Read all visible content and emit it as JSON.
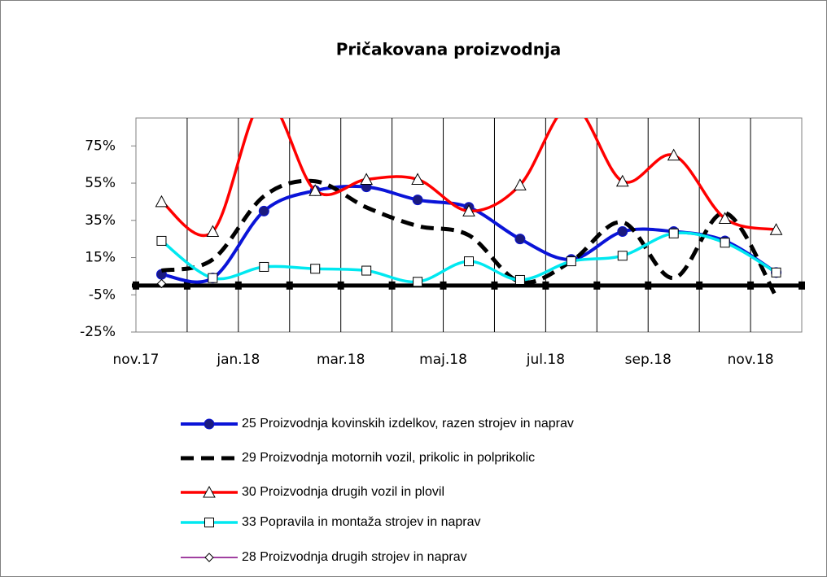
{
  "chart_data": {
    "type": "line",
    "title": "Pričakovana proizvodnja",
    "categories": [
      "nov.17",
      null,
      "jan.18",
      null,
      "mar.18",
      null,
      "maj.18",
      null,
      "jul.18",
      null,
      "sep.18",
      null,
      "nov.18"
    ],
    "ylim": [
      -25,
      90
    ],
    "yticks": [
      {
        "value": -25,
        "label": "-25%"
      },
      {
        "value": -5,
        "label": "-5%"
      },
      {
        "value": 15,
        "label": "15%"
      },
      {
        "value": 35,
        "label": "35%"
      },
      {
        "value": 55,
        "label": "55%"
      },
      {
        "value": 75,
        "label": "75%"
      }
    ],
    "grid": "vertical",
    "series": [
      {
        "name": "25 Proizvodnja kovinskih izdelkov, razen strojev in naprav",
        "color": "#0a14d8",
        "marker": "circle",
        "line_style": "solid",
        "values": [
          6,
          4,
          40,
          51,
          53,
          46,
          42,
          25,
          14,
          29,
          29,
          24,
          7
        ]
      },
      {
        "name": "29 Proizvodnja motornih vozil, prikolic in polprikolic",
        "color": "#000000",
        "marker": "none",
        "line_style": "dashed",
        "values": [
          8,
          14,
          48,
          56,
          42,
          32,
          27,
          2,
          13,
          34,
          4,
          39,
          -6
        ]
      },
      {
        "name": "30 Proizvodnja drugih vozil in plovil",
        "color": "#ff0000",
        "marker": "triangle",
        "line_style": "solid",
        "values": [
          45,
          29,
          100,
          51,
          57,
          57,
          40,
          54,
          97,
          56,
          70,
          36,
          30
        ]
      },
      {
        "name": "33 Popravila in montaža strojev in naprav",
        "color": "#00e8f0",
        "marker": "square",
        "line_style": "solid",
        "values": [
          24,
          4,
          10,
          9,
          8,
          2,
          13,
          3,
          13,
          16,
          28,
          23,
          7
        ]
      },
      {
        "name": "28 Proizvodnja drugih strojev in naprav",
        "color": "#800080",
        "marker": "diamond",
        "line_style": "solid",
        "values": [
          1,
          null,
          null,
          null,
          null,
          null,
          null,
          null,
          null,
          null,
          null,
          null,
          null
        ]
      }
    ]
  }
}
